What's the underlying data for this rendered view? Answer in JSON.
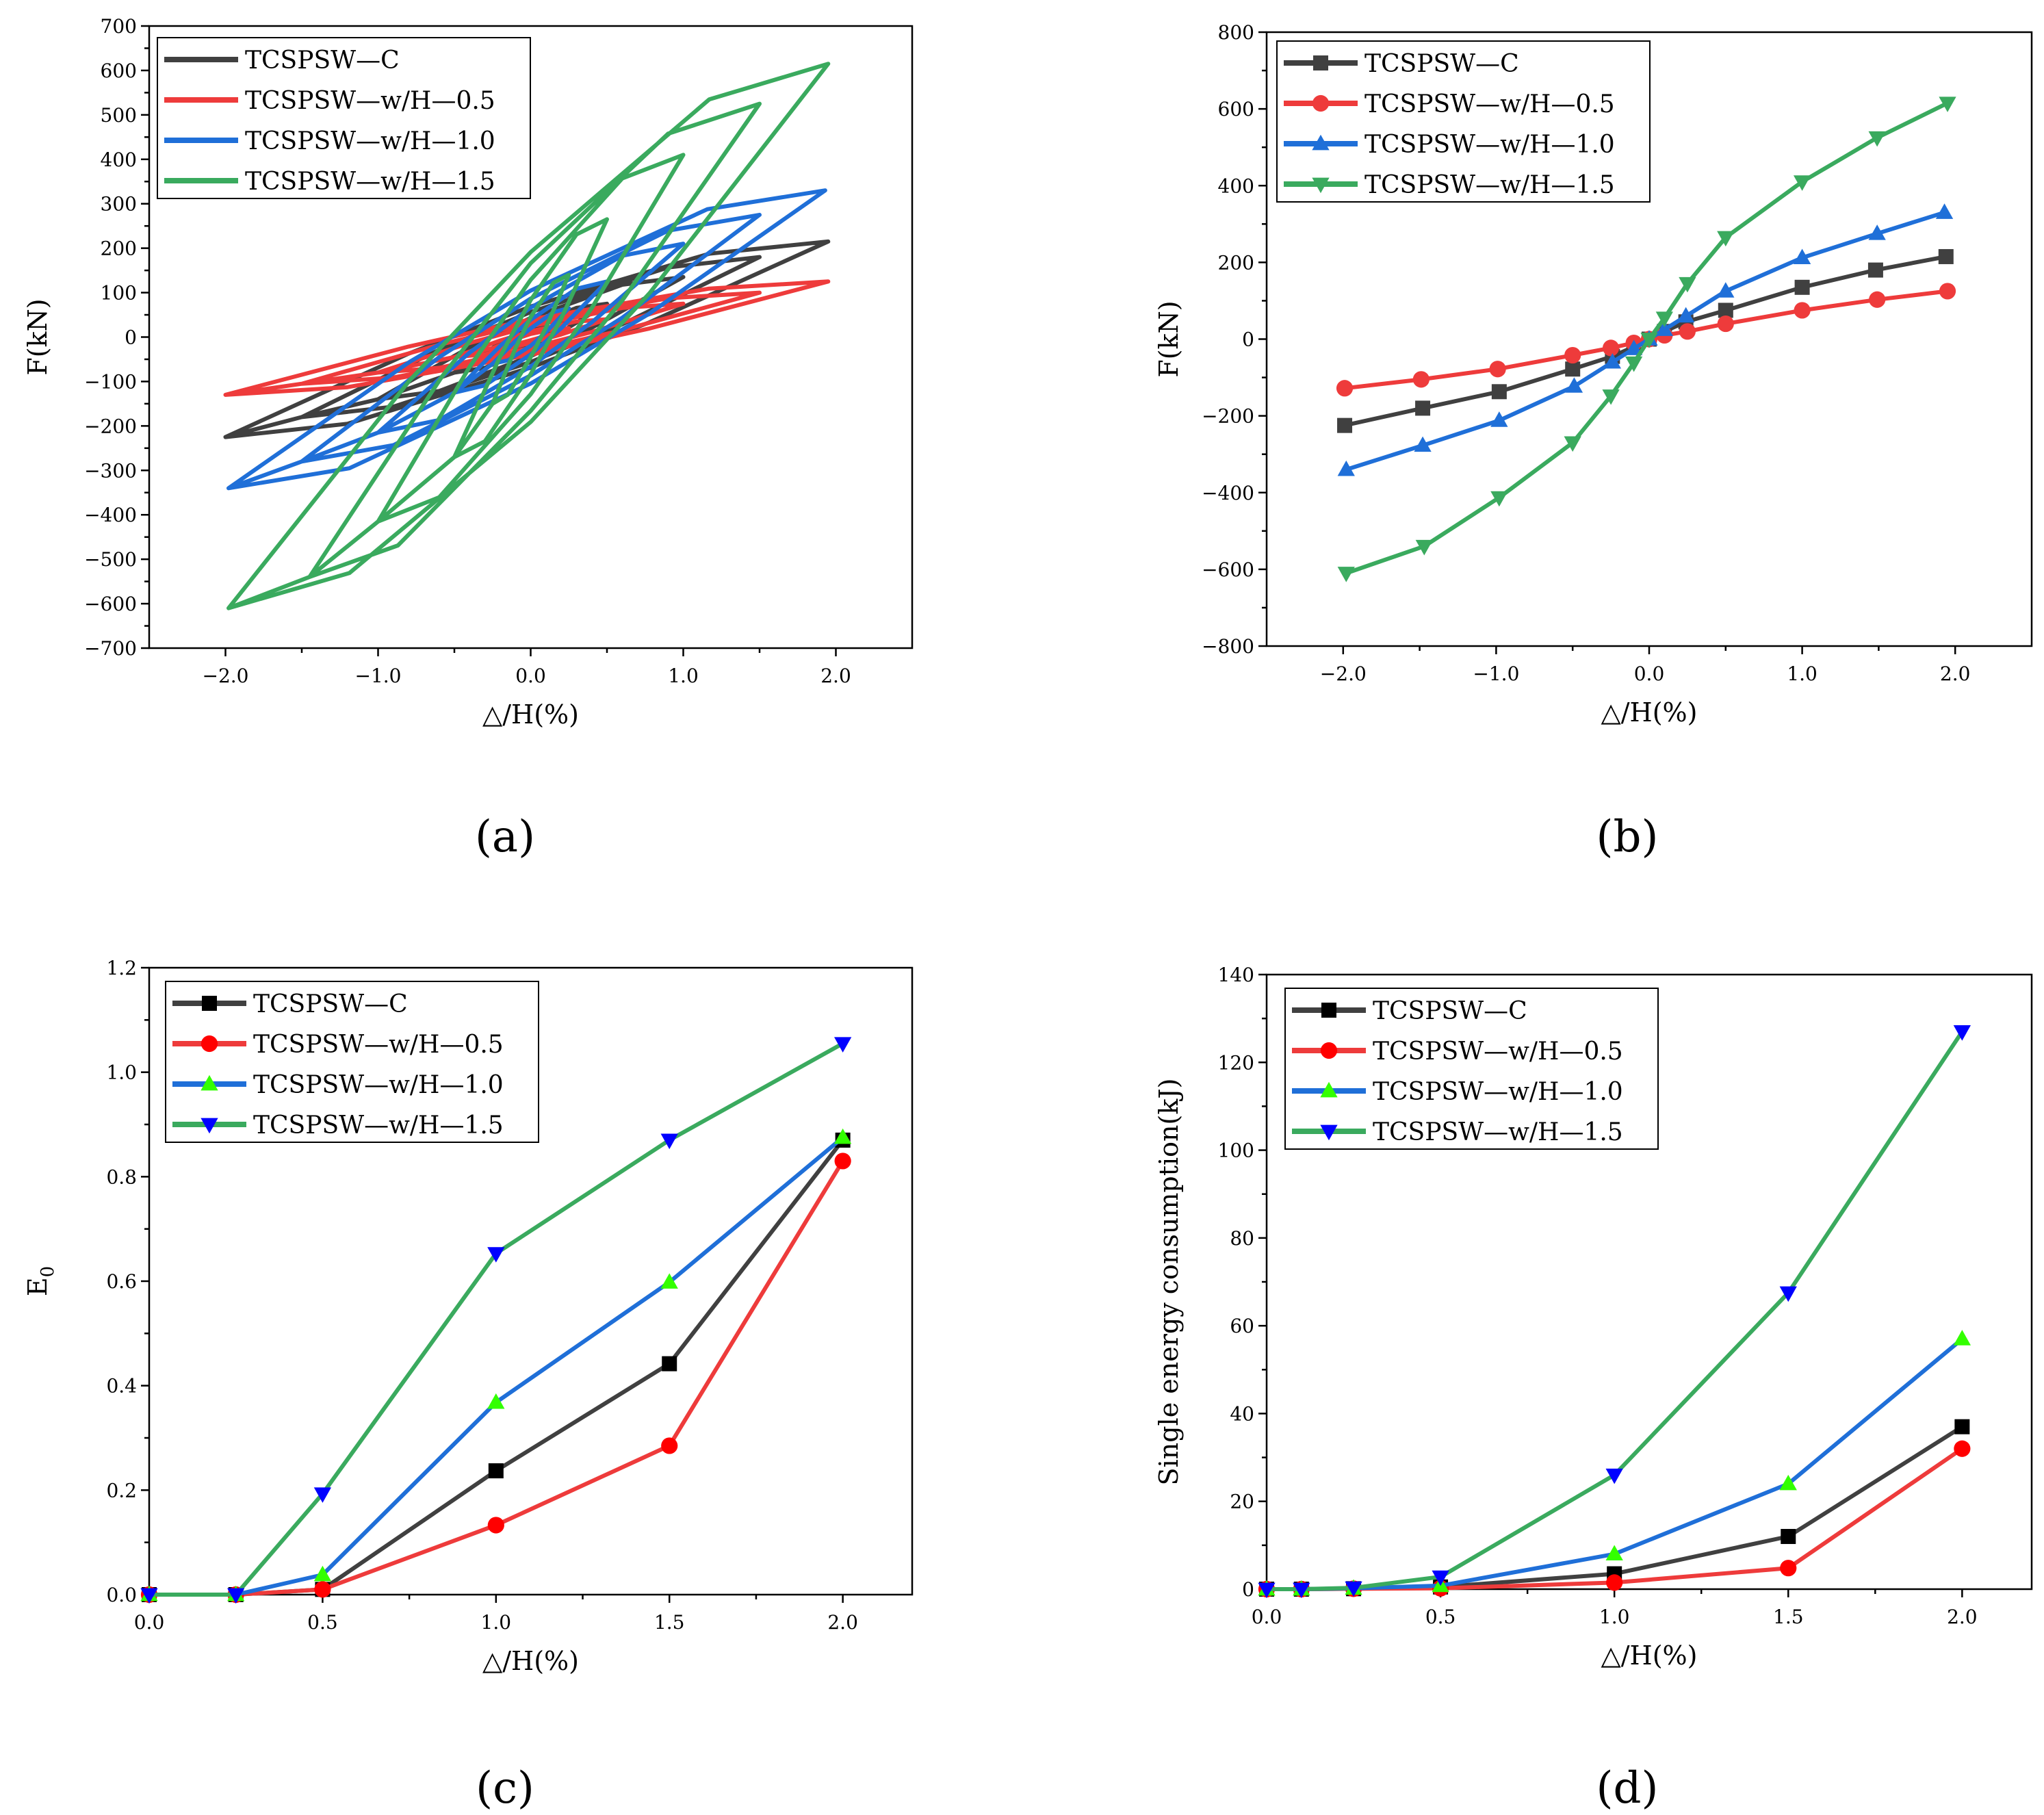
{
  "chart_data": [
    {
      "panel_label": "(a)",
      "type": "line",
      "title": "",
      "xlabel": "△/H(%)",
      "ylabel": "F(kN)",
      "xlim": [
        -2.5,
        2.5
      ],
      "ylim": [
        -700,
        700
      ],
      "xticks": [
        -2.0,
        -1.0,
        0.0,
        1.0,
        2.0
      ],
      "xtick_labels": [
        "−2.0",
        "−1.0",
        "0.0",
        "1.0",
        "2.0"
      ],
      "yticks": [
        700,
        600,
        500,
        400,
        300,
        200,
        100,
        0,
        -100,
        -200,
        -300,
        -400,
        -500,
        -600,
        -700
      ],
      "ytick_labels": [
        "700",
        "600",
        "500",
        "400",
        "300",
        "200",
        "100",
        "0",
        "−100",
        "−200",
        "−300",
        "−400",
        "−500",
        "−600",
        "−700"
      ],
      "grid": false,
      "legend_position": "top-left",
      "series": [
        {
          "name": "TCSPSW—C",
          "color": "#404040",
          "peaks": [
            [
              0.25,
              45
            ],
            [
              0.5,
              75
            ],
            [
              1.0,
              135
            ],
            [
              1.5,
              180
            ],
            [
              1.95,
              215
            ],
            [
              -0.25,
              -45
            ],
            [
              -0.5,
              -80
            ],
            [
              -1.0,
              -140
            ],
            [
              -1.5,
              -180
            ],
            [
              -2.0,
              -225
            ]
          ]
        },
        {
          "name": "TCSPSW—w/H—0.5",
          "color": "#ee3b3b",
          "peaks": [
            [
              0.25,
              20
            ],
            [
              0.5,
              40
            ],
            [
              1.0,
              75
            ],
            [
              1.5,
              100
            ],
            [
              1.95,
              125
            ],
            [
              -0.25,
              -25
            ],
            [
              -0.5,
              -45
            ],
            [
              -1.0,
              -80
            ],
            [
              -1.5,
              -105
            ],
            [
              -2.0,
              -130
            ]
          ]
        },
        {
          "name": "TCSPSW—w/H—1.0",
          "color": "#1f6fd8",
          "peaks": [
            [
              0.25,
              65
            ],
            [
              0.5,
              125
            ],
            [
              1.0,
              210
            ],
            [
              1.5,
              275
            ],
            [
              1.93,
              330
            ],
            [
              -0.25,
              -60
            ],
            [
              -0.5,
              -125
            ],
            [
              -1.0,
              -215
            ],
            [
              -1.5,
              -280
            ],
            [
              -1.98,
              -340
            ]
          ]
        },
        {
          "name": "TCSPSW—w/H—1.5",
          "color": "#3aaa5e",
          "peaks": [
            [
              0.25,
              140
            ],
            [
              0.5,
              265
            ],
            [
              1.0,
              410
            ],
            [
              1.5,
              525
            ],
            [
              1.95,
              615
            ],
            [
              -0.25,
              -150
            ],
            [
              -0.5,
              -270
            ],
            [
              -1.0,
              -415
            ],
            [
              -1.45,
              -540
            ],
            [
              -1.98,
              -610
            ]
          ]
        }
      ]
    },
    {
      "panel_label": "(b)",
      "type": "line",
      "title": "",
      "xlabel": "△/H(%)",
      "ylabel": "F(kN)",
      "xlim": [
        -2.5,
        2.5
      ],
      "ylim": [
        -800,
        800
      ],
      "xticks": [
        -2.0,
        -1.0,
        0.0,
        1.0,
        2.0
      ],
      "xtick_labels": [
        "−2.0",
        "−1.0",
        "0.0",
        "1.0",
        "2.0"
      ],
      "yticks": [
        800,
        600,
        400,
        200,
        0,
        -200,
        -400,
        -600,
        -800
      ],
      "ytick_labels": [
        "800",
        "600",
        "400",
        "200",
        "0",
        "−200",
        "−400",
        "−600",
        "−800"
      ],
      "grid": false,
      "legend_position": "top-left",
      "series": [
        {
          "name": "TCSPSW—C",
          "color": "#404040",
          "marker": "square",
          "marker_color": "#404040",
          "x": [
            -1.99,
            -1.48,
            -0.98,
            -0.5,
            -0.24,
            -0.1,
            0.0,
            0.1,
            0.24,
            0.5,
            1.0,
            1.48,
            1.94
          ],
          "y": [
            -225,
            -180,
            -137,
            -78,
            -45,
            -20,
            0,
            20,
            45,
            75,
            135,
            180,
            215
          ]
        },
        {
          "name": "TCSPSW—w/H—0.5",
          "color": "#ee3b3b",
          "marker": "circle",
          "marker_color": "#ee3b3b",
          "x": [
            -1.99,
            -1.49,
            -0.99,
            -0.5,
            -0.25,
            -0.1,
            0.0,
            0.1,
            0.25,
            0.5,
            1.0,
            1.49,
            1.95
          ],
          "y": [
            -128,
            -105,
            -78,
            -42,
            -23,
            -10,
            0,
            10,
            20,
            40,
            75,
            103,
            125
          ]
        },
        {
          "name": "TCSPSW—w/H—1.0",
          "color": "#1f6fd8",
          "marker": "triangle-up",
          "marker_color": "#1f6fd8",
          "x": [
            -1.98,
            -1.48,
            -0.98,
            -0.49,
            -0.24,
            -0.1,
            0.0,
            0.1,
            0.24,
            0.5,
            1.0,
            1.49,
            1.93
          ],
          "y": [
            -340,
            -277,
            -212,
            -123,
            -60,
            -25,
            0,
            25,
            60,
            125,
            212,
            275,
            330
          ]
        },
        {
          "name": "TCSPSW—w/H—1.5",
          "color": "#3aaa5e",
          "marker": "triangle-down",
          "marker_color": "#3aaa5e",
          "x": [
            -1.98,
            -1.47,
            -0.98,
            -0.5,
            -0.25,
            -0.1,
            0.0,
            0.1,
            0.25,
            0.5,
            1.0,
            1.49,
            1.95
          ],
          "y": [
            -610,
            -540,
            -413,
            -270,
            -148,
            -62,
            0,
            55,
            145,
            265,
            410,
            525,
            615
          ]
        }
      ]
    },
    {
      "panel_label": "(c)",
      "type": "line",
      "title": "",
      "xlabel": "△/H(%)",
      "ylabel": "E",
      "ylabel_subscript": "0",
      "xlim": [
        0.0,
        2.2
      ],
      "ylim": [
        0.0,
        1.2
      ],
      "xticks": [
        0.0,
        0.5,
        1.0,
        1.5,
        2.0
      ],
      "xtick_labels": [
        "0.0",
        "0.5",
        "1.0",
        "1.5",
        "2.0"
      ],
      "yticks": [
        0.0,
        0.2,
        0.4,
        0.6,
        0.8,
        1.0,
        1.2
      ],
      "ytick_labels": [
        "0.0",
        "0.2",
        "0.4",
        "0.6",
        "0.8",
        "1.0",
        "1.2"
      ],
      "grid": false,
      "legend_position": "top-left",
      "series": [
        {
          "name": "TCSPSW—C",
          "color": "#404040",
          "marker": "square",
          "marker_color": "#000000",
          "x": [
            0.0,
            0.25,
            0.5,
            1.0,
            1.5,
            2.0
          ],
          "y": [
            0.0,
            0.0,
            0.01,
            0.237,
            0.442,
            0.87
          ]
        },
        {
          "name": "TCSPSW—w/H—0.5",
          "color": "#ee3b3b",
          "marker": "circle",
          "marker_color": "#ff0000",
          "x": [
            0.0,
            0.25,
            0.5,
            1.0,
            1.5,
            2.0
          ],
          "y": [
            0.0,
            0.0,
            0.01,
            0.133,
            0.285,
            0.83
          ]
        },
        {
          "name": "TCSPSW—w/H—1.0",
          "color": "#1f6fd8",
          "marker": "triangle-up",
          "marker_color": "#33ff00",
          "x": [
            0.0,
            0.25,
            0.5,
            1.0,
            1.5,
            2.0
          ],
          "y": [
            0.0,
            0.0,
            0.038,
            0.368,
            0.598,
            0.875
          ]
        },
        {
          "name": "TCSPSW—w/H—1.5",
          "color": "#3aaa5e",
          "marker": "triangle-down",
          "marker_color": "#0000ff",
          "x": [
            0.0,
            0.25,
            0.5,
            1.0,
            1.5,
            2.0
          ],
          "y": [
            0.0,
            0.0,
            0.193,
            0.653,
            0.87,
            1.055
          ]
        }
      ]
    },
    {
      "panel_label": "(d)",
      "type": "line",
      "title": "",
      "xlabel": "△/H(%)",
      "ylabel": "Single  energy consumption(kJ)",
      "xlim": [
        0.0,
        2.2
      ],
      "ylim": [
        0,
        140
      ],
      "xticks": [
        0.0,
        0.5,
        1.0,
        1.5,
        2.0
      ],
      "xtick_labels": [
        "0.0",
        "0.5",
        "1.0",
        "1.5",
        "2.0"
      ],
      "yticks": [
        0,
        20,
        40,
        60,
        80,
        100,
        120,
        140
      ],
      "ytick_labels": [
        "0",
        "20",
        "40",
        "60",
        "80",
        "100",
        "120",
        "140"
      ],
      "grid": false,
      "legend_position": "top-left",
      "series": [
        {
          "name": "TCSPSW—C",
          "color": "#404040",
          "marker": "square",
          "marker_color": "#000000",
          "x": [
            0.0,
            0.1,
            0.25,
            0.5,
            1.0,
            1.5,
            2.0
          ],
          "y": [
            0.0,
            0.0,
            0.1,
            0.5,
            3.5,
            12.0,
            37.0
          ]
        },
        {
          "name": "TCSPSW—w/H—0.5",
          "color": "#ee3b3b",
          "marker": "circle",
          "marker_color": "#ff0000",
          "x": [
            0.0,
            0.1,
            0.25,
            0.5,
            1.0,
            1.5,
            2.0
          ],
          "y": [
            0.0,
            0.0,
            0.1,
            0.2,
            1.5,
            4.8,
            32.0
          ]
        },
        {
          "name": "TCSPSW—w/H—1.0",
          "color": "#1f6fd8",
          "marker": "triangle-up",
          "marker_color": "#33ff00",
          "x": [
            0.0,
            0.1,
            0.25,
            0.5,
            1.0,
            1.5,
            2.0
          ],
          "y": [
            0.0,
            0.0,
            0.2,
            0.8,
            8.0,
            24.0,
            57.0
          ]
        },
        {
          "name": "TCSPSW—w/H—1.5",
          "color": "#3aaa5e",
          "marker": "triangle-down",
          "marker_color": "#0000ff",
          "x": [
            0.0,
            0.1,
            0.25,
            0.5,
            1.0,
            1.5,
            2.0
          ],
          "y": [
            0.0,
            0.0,
            0.3,
            2.8,
            26.0,
            67.5,
            127.0
          ]
        }
      ]
    }
  ]
}
